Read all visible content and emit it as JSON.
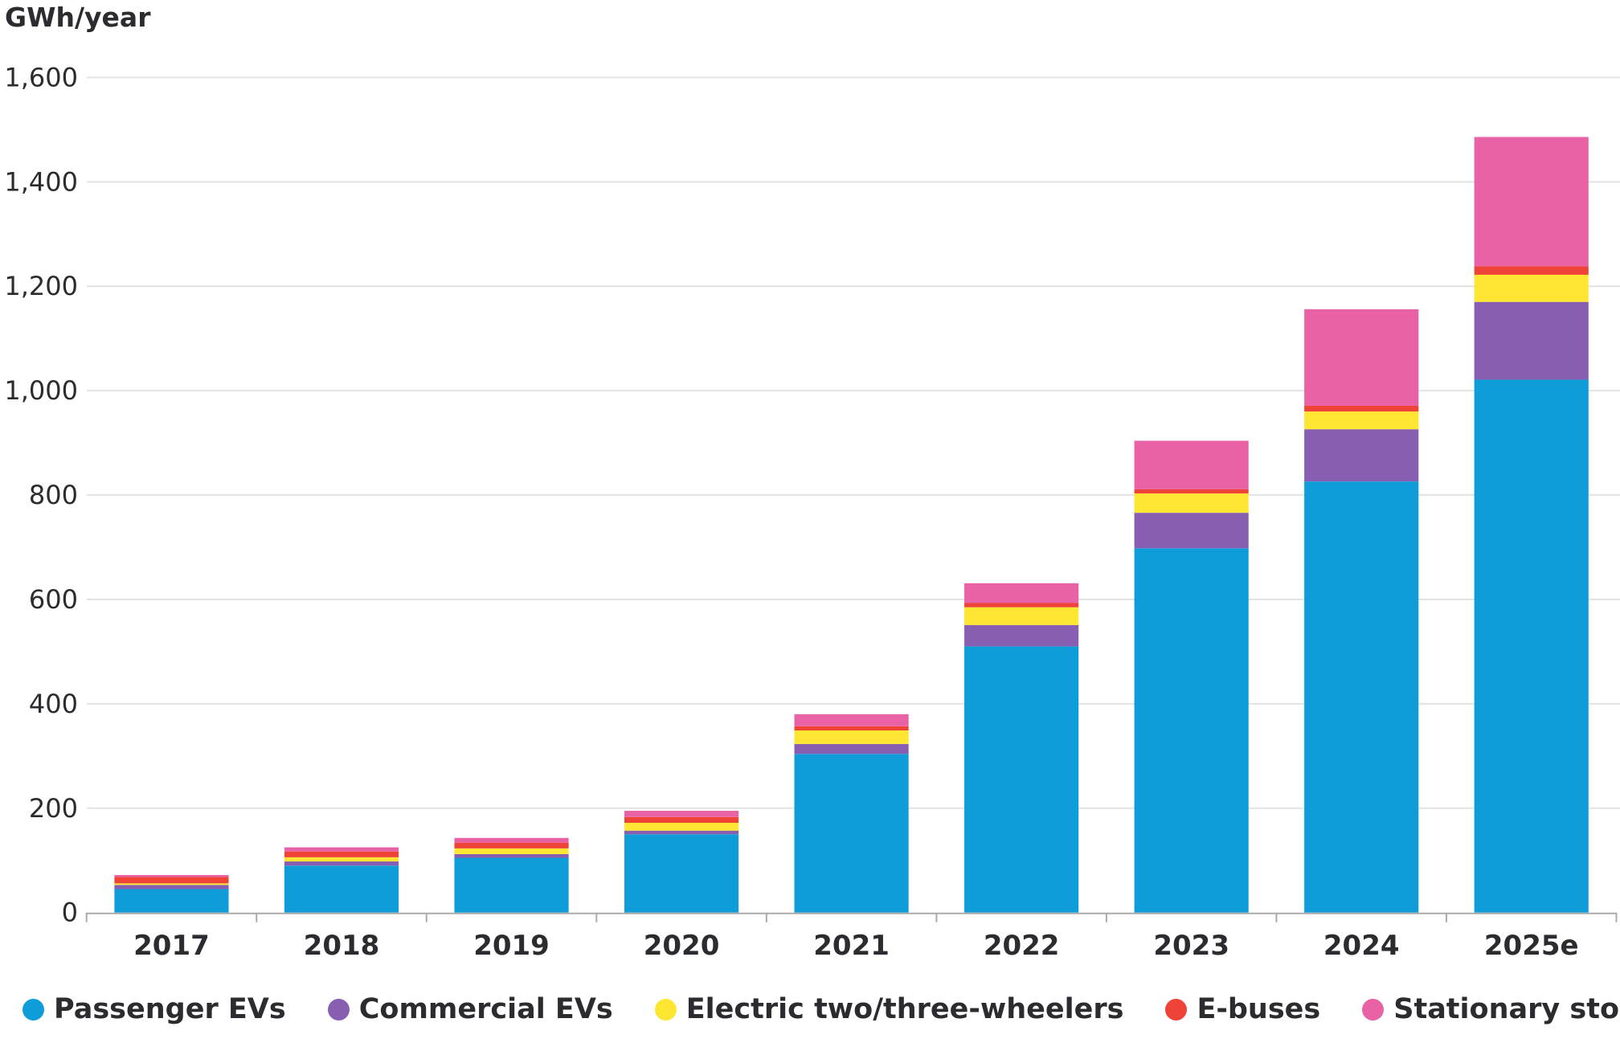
{
  "chart_data": {
    "type": "bar",
    "stacked": true,
    "title": "",
    "ylabel": "GWh/year",
    "xlabel": "",
    "ylim": [
      0,
      1600
    ],
    "yticks": [
      0,
      200,
      400,
      600,
      800,
      1000,
      1200,
      1400,
      1600
    ],
    "ytick_labels": [
      "0",
      "200",
      "400",
      "600",
      "800",
      "1,000",
      "1,200",
      "1,400",
      "1,600"
    ],
    "grid": true,
    "legend_position": "bottom",
    "categories": [
      "2017",
      "2018",
      "2019",
      "2020",
      "2021",
      "2022",
      "2023",
      "2024",
      "2025e"
    ],
    "series": [
      {
        "name": "Passenger EVs",
        "color": "#0f9dd9",
        "values": [
          45,
          90,
          105,
          150,
          304,
          510,
          698,
          826,
          1021
        ]
      },
      {
        "name": "Commercial EVs",
        "color": "#885eb3",
        "values": [
          8,
          8,
          7,
          7,
          19,
          41,
          68,
          100,
          149
        ]
      },
      {
        "name": "Electric two/three-wheelers",
        "color": "#ffe632",
        "values": [
          3,
          8,
          11,
          15,
          26,
          34,
          37,
          34,
          52
        ]
      },
      {
        "name": "E-buses",
        "color": "#ee4336",
        "values": [
          12,
          11,
          11,
          11,
          8,
          8,
          8,
          11,
          16
        ]
      },
      {
        "name": "Stationary storage",
        "color": "#e962a6",
        "values": [
          4,
          8,
          9,
          12,
          23,
          38,
          93,
          185,
          248
        ]
      }
    ]
  }
}
